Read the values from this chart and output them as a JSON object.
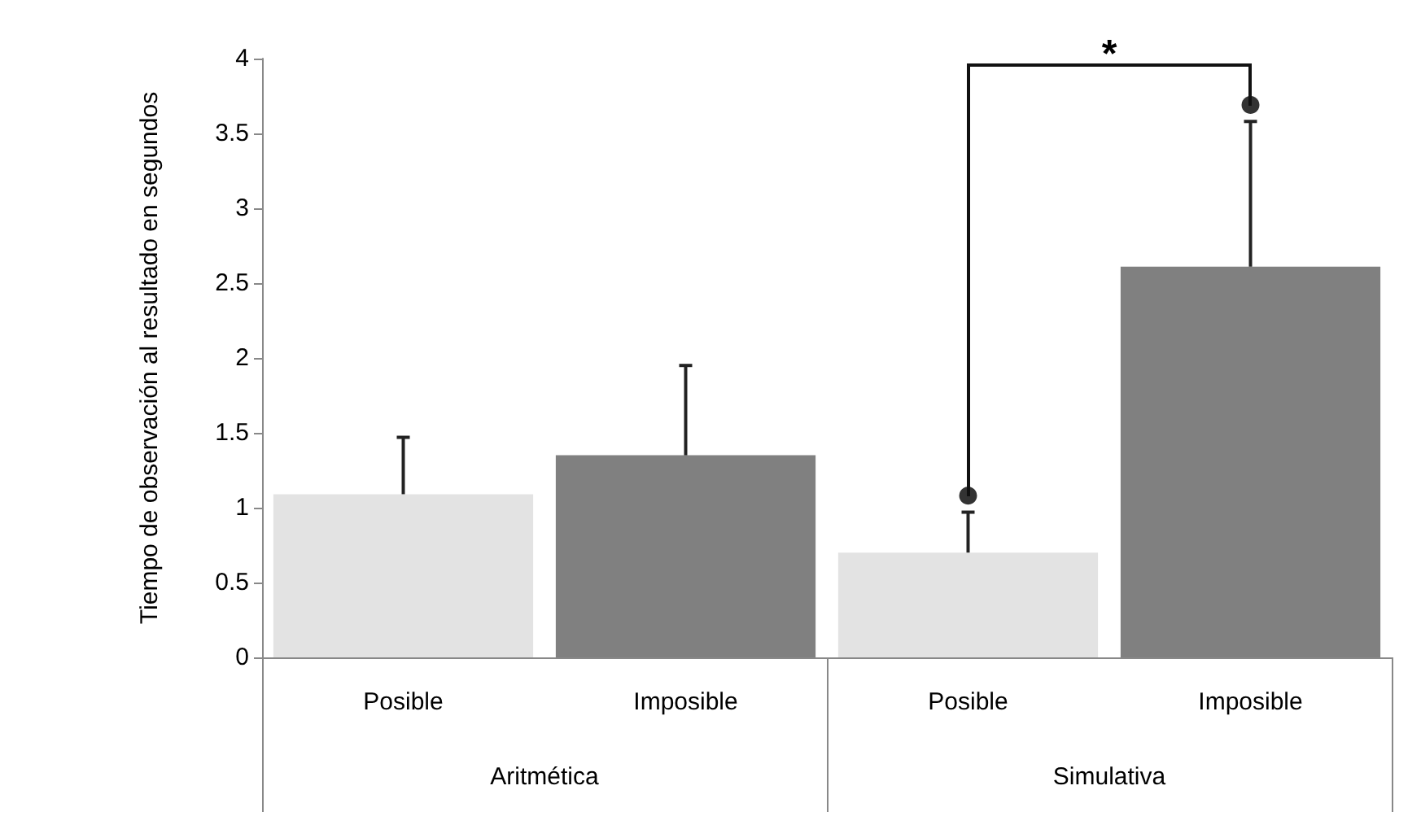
{
  "chart_data": {
    "type": "bar",
    "ylabel": "Tiempo de observación al resultado en segundos",
    "categories": [
      "Posible",
      "Imposible",
      "Posible",
      "Imposible"
    ],
    "values": [
      1.09,
      1.35,
      0.7,
      2.61
    ],
    "colors": [
      "#e3e3e3",
      "#808080",
      "#e3e3e3",
      "#808080"
    ],
    "errors": [
      [
        1.09,
        1.47
      ],
      [
        1.35,
        1.95
      ],
      [
        0.7,
        0.97
      ],
      [
        2.61,
        3.58
      ]
    ],
    "series": [
      {
        "type": "scatter",
        "color": "#000000",
        "values": [
          null,
          null,
          1.08,
          3.69
        ]
      }
    ],
    "ylim": [
      0,
      4
    ],
    "yticks": [
      0,
      0.5,
      1,
      1.5,
      2,
      2.5,
      3,
      3.5,
      4
    ],
    "annotations": [
      "Aritmética",
      "Simulativa",
      "*"
    ],
    "grid": false,
    "marker": "circle"
  }
}
